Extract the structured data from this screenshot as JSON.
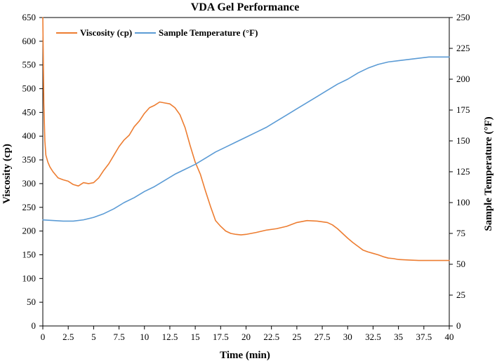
{
  "chart_data": {
    "type": "line",
    "title": "VDA Gel Performance",
    "xlabel": "Time (min)",
    "ylabel": "Viscosity (cp)",
    "y2label": "Sample Temperature (°F)",
    "xlim": [
      0,
      40
    ],
    "ylim": [
      0,
      650
    ],
    "y2lim": [
      0,
      250
    ],
    "x_ticks": [
      "0",
      "2.5",
      "5",
      "7.5",
      "10",
      "12.5",
      "15",
      "17.5",
      "20",
      "22.5",
      "25",
      "27.5",
      "30",
      "32.5",
      "35",
      "37.5",
      "40"
    ],
    "y_ticks": [
      "0",
      "50",
      "100",
      "150",
      "200",
      "250",
      "300",
      "350",
      "400",
      "450",
      "500",
      "550",
      "600",
      "650"
    ],
    "y2_ticks": [
      "0",
      "25",
      "50",
      "75",
      "100",
      "125",
      "150",
      "175",
      "200",
      "225",
      "250"
    ],
    "grid": false,
    "legend_position": "top-left",
    "series": [
      {
        "name": "Viscosity (cp)",
        "axis": "left",
        "color": "#ED7D31",
        "x": [
          0,
          0.1,
          0.2,
          0.3,
          0.5,
          0.7,
          1.0,
          1.5,
          2.0,
          2.5,
          3.0,
          3.5,
          4.0,
          4.5,
          5.0,
          5.5,
          6.0,
          6.5,
          7.0,
          7.5,
          8.0,
          8.5,
          9.0,
          9.5,
          10.0,
          10.5,
          11.0,
          11.5,
          12.0,
          12.5,
          13.0,
          13.5,
          14.0,
          14.5,
          15.0,
          15.5,
          16.0,
          16.5,
          17.0,
          17.5,
          18.0,
          18.5,
          19.0,
          19.5,
          20.0,
          20.5,
          21.0,
          22.0,
          23.0,
          24.0,
          25.0,
          26.0,
          27.0,
          28.0,
          28.5,
          29.0,
          29.5,
          30.0,
          30.5,
          31.0,
          31.5,
          32.0,
          32.5,
          33.0,
          33.5,
          34.0,
          34.5,
          35.0,
          36.0,
          37.0,
          38.0,
          39.0,
          40.0
        ],
        "values": [
          650,
          470,
          390,
          360,
          345,
          335,
          325,
          312,
          308,
          305,
          298,
          295,
          302,
          300,
          302,
          312,
          328,
          342,
          360,
          378,
          392,
          402,
          420,
          432,
          448,
          460,
          465,
          472,
          470,
          468,
          460,
          445,
          418,
          380,
          345,
          320,
          285,
          252,
          222,
          210,
          200,
          195,
          193,
          192,
          193,
          195,
          197,
          202,
          205,
          210,
          218,
          222,
          221,
          218,
          213,
          205,
          195,
          185,
          176,
          168,
          160,
          156,
          153,
          150,
          146,
          143,
          142,
          140,
          139,
          138,
          138,
          138,
          138
        ]
      },
      {
        "name": "Sample Temperature (°F)",
        "axis": "right",
        "color": "#5B9BD5",
        "x": [
          0,
          1,
          2,
          3,
          4,
          5,
          6,
          7,
          8,
          9,
          10,
          11,
          12,
          13,
          14,
          15,
          16,
          17,
          18,
          19,
          20,
          21,
          22,
          23,
          24,
          25,
          26,
          27,
          28,
          29,
          30,
          31,
          32,
          33,
          34,
          35,
          36,
          37,
          38,
          39,
          40
        ],
        "values": [
          86,
          85.5,
          85,
          85,
          86,
          88,
          91,
          95,
          100,
          104,
          109,
          113,
          118,
          123,
          127,
          131,
          136,
          141,
          145,
          149,
          153,
          157,
          161,
          166,
          171,
          176,
          181,
          186,
          191,
          196,
          200,
          205,
          209,
          212,
          214,
          215,
          216,
          217,
          218,
          218,
          218
        ]
      }
    ]
  }
}
